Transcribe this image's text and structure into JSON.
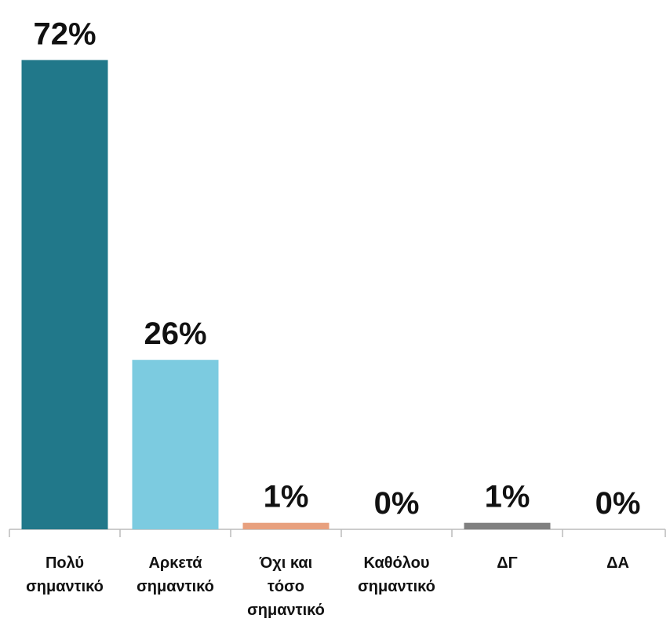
{
  "chart_data": {
    "type": "bar",
    "categories": [
      "Πολύ\nσημαντικό",
      "Αρκετά\nσημαντικό",
      "Όχι και\nτόσο\nσημαντικό",
      "Καθόλου\nσημαντικό",
      "ΔΓ",
      "ΔΑ"
    ],
    "values": [
      72,
      26,
      1,
      0,
      1,
      0
    ],
    "value_labels": [
      "72%",
      "26%",
      "1%",
      "0%",
      "1%",
      "0%"
    ],
    "colors": [
      "#21788a",
      "#7ccbe0",
      "#e8a07e",
      "#a5a5a5",
      "#808080",
      "#a5a5a5"
    ]
  }
}
